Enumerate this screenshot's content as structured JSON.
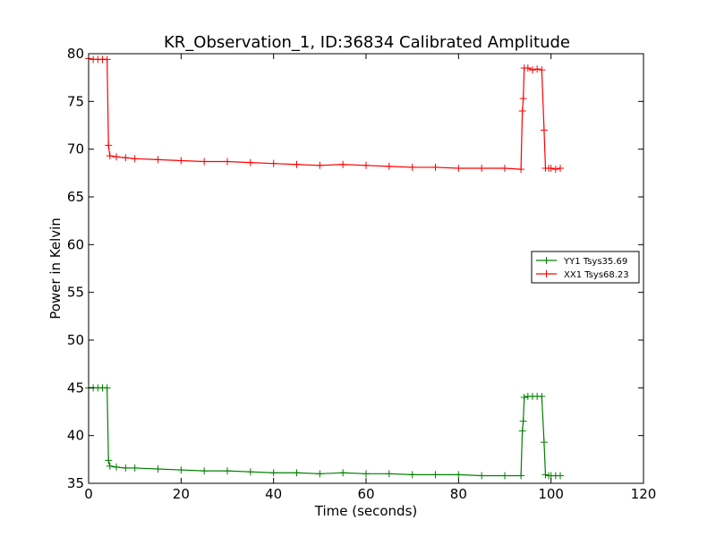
{
  "chart_data": {
    "type": "line",
    "title": "KR_Observation_1, ID:36834 Calibrated Amplitude",
    "xlabel": "Time (seconds)",
    "ylabel": "Power in Kelvin",
    "xlim": [
      0,
      120
    ],
    "ylim": [
      35,
      80
    ],
    "xticks": [
      0,
      20,
      40,
      60,
      80,
      100,
      120
    ],
    "yticks": [
      35,
      40,
      45,
      50,
      55,
      60,
      65,
      70,
      75,
      80
    ],
    "grid": false,
    "legend_position": "center-right",
    "marker": "+",
    "series": [
      {
        "name": "YY1 Tsys35.69",
        "color": "#008000",
        "points": [
          [
            0,
            45.0
          ],
          [
            1,
            45.0
          ],
          [
            2,
            45.0
          ],
          [
            3,
            45.0
          ],
          [
            4,
            45.0
          ],
          [
            4.3,
            37.4
          ],
          [
            4.6,
            36.8
          ],
          [
            6,
            36.7
          ],
          [
            8,
            36.6
          ],
          [
            10,
            36.6
          ],
          [
            15,
            36.5
          ],
          [
            20,
            36.4
          ],
          [
            25,
            36.3
          ],
          [
            30,
            36.3
          ],
          [
            35,
            36.2
          ],
          [
            40,
            36.1
          ],
          [
            45,
            36.1
          ],
          [
            50,
            36.0
          ],
          [
            55,
            36.1
          ],
          [
            60,
            36.0
          ],
          [
            65,
            36.0
          ],
          [
            70,
            35.9
          ],
          [
            75,
            35.9
          ],
          [
            80,
            35.9
          ],
          [
            85,
            35.8
          ],
          [
            90,
            35.8
          ],
          [
            93.5,
            35.8
          ],
          [
            93.8,
            40.5
          ],
          [
            94.0,
            41.5
          ],
          [
            94.2,
            44.0
          ],
          [
            95,
            44.1
          ],
          [
            96,
            44.1
          ],
          [
            97,
            44.1
          ],
          [
            98,
            44.1
          ],
          [
            98.5,
            39.3
          ],
          [
            98.8,
            35.9
          ],
          [
            99.5,
            35.8
          ],
          [
            100,
            35.8
          ],
          [
            101,
            35.8
          ],
          [
            102,
            35.8
          ]
        ]
      },
      {
        "name": "XX1 Tsys68.23",
        "color": "#ff0000",
        "points": [
          [
            0,
            79.5
          ],
          [
            1,
            79.4
          ],
          [
            2,
            79.4
          ],
          [
            3,
            79.4
          ],
          [
            4,
            79.4
          ],
          [
            4.3,
            70.4
          ],
          [
            4.6,
            69.3
          ],
          [
            6,
            69.2
          ],
          [
            8,
            69.1
          ],
          [
            10,
            69.0
          ],
          [
            15,
            68.9
          ],
          [
            20,
            68.8
          ],
          [
            25,
            68.7
          ],
          [
            30,
            68.7
          ],
          [
            35,
            68.6
          ],
          [
            40,
            68.5
          ],
          [
            45,
            68.4
          ],
          [
            50,
            68.3
          ],
          [
            55,
            68.4
          ],
          [
            60,
            68.3
          ],
          [
            65,
            68.2
          ],
          [
            70,
            68.1
          ],
          [
            75,
            68.1
          ],
          [
            80,
            68.0
          ],
          [
            85,
            68.0
          ],
          [
            90,
            68.0
          ],
          [
            93.5,
            67.9
          ],
          [
            93.8,
            74.0
          ],
          [
            94.0,
            75.3
          ],
          [
            94.2,
            78.5
          ],
          [
            95,
            78.5
          ],
          [
            96,
            78.3
          ],
          [
            97,
            78.4
          ],
          [
            98,
            78.3
          ],
          [
            98.5,
            72.0
          ],
          [
            98.8,
            68.0
          ],
          [
            99.5,
            68.0
          ],
          [
            100,
            68.0
          ],
          [
            101,
            67.9
          ],
          [
            102,
            68.0
          ]
        ]
      }
    ]
  }
}
